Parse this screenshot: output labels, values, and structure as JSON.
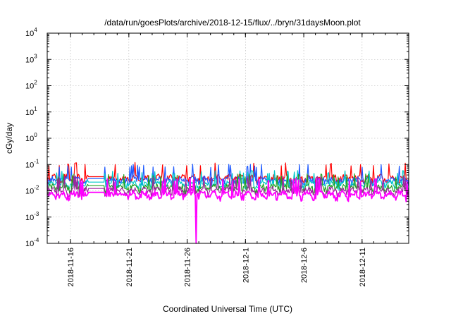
{
  "chart_data": {
    "type": "line",
    "title": "/data/run/goesPlots/archive/2018-12-15/flux/../bryn/31daysMoon.plot",
    "xlabel": "Coordinated Universal Time (UTC)",
    "ylabel": "cGy/day",
    "yscale": "log",
    "ylim": [
      0.0001,
      10000
    ],
    "xlim_days_from_2018_11_14": [
      0,
      31
    ],
    "y_ticks": [
      {
        "base": "10",
        "exp": "4"
      },
      {
        "base": "10",
        "exp": "3"
      },
      {
        "base": "10",
        "exp": "2"
      },
      {
        "base": "10",
        "exp": "1"
      },
      {
        "base": "10",
        "exp": "0"
      },
      {
        "base": "10",
        "exp": "-1"
      },
      {
        "base": "10",
        "exp": "-2"
      },
      {
        "base": "10",
        "exp": "-3"
      },
      {
        "base": "10",
        "exp": "-4"
      }
    ],
    "x_ticks": [
      {
        "label": "2018-11-16",
        "day": 2
      },
      {
        "label": "2018-11-21",
        "day": 7
      },
      {
        "label": "2018-11-26",
        "day": 12
      },
      {
        "label": "2018-12-1",
        "day": 17
      },
      {
        "label": "2018-12-6",
        "day": 22
      },
      {
        "label": "2018-12-11",
        "day": 27
      }
    ],
    "grid": true,
    "series": [
      {
        "name": "red",
        "color": "#ff0000",
        "typical": 0.03,
        "peak": 0.08
      },
      {
        "name": "blue",
        "color": "#1e5aff",
        "typical": 0.025,
        "peak": 0.07
      },
      {
        "name": "cyan",
        "color": "#00c8c8",
        "typical": 0.018,
        "peak": 0.04
      },
      {
        "name": "green",
        "color": "#22a022",
        "typical": 0.013,
        "peak": 0.03
      },
      {
        "name": "purple",
        "color": "#a020a0",
        "typical": 0.01,
        "peak": 0.025
      },
      {
        "name": "magenta",
        "color": "#ff00ff",
        "typical": 0.007,
        "peak": 0.02,
        "dropout": {
          "day": 12.8,
          "value": 0.0001
        }
      }
    ]
  }
}
